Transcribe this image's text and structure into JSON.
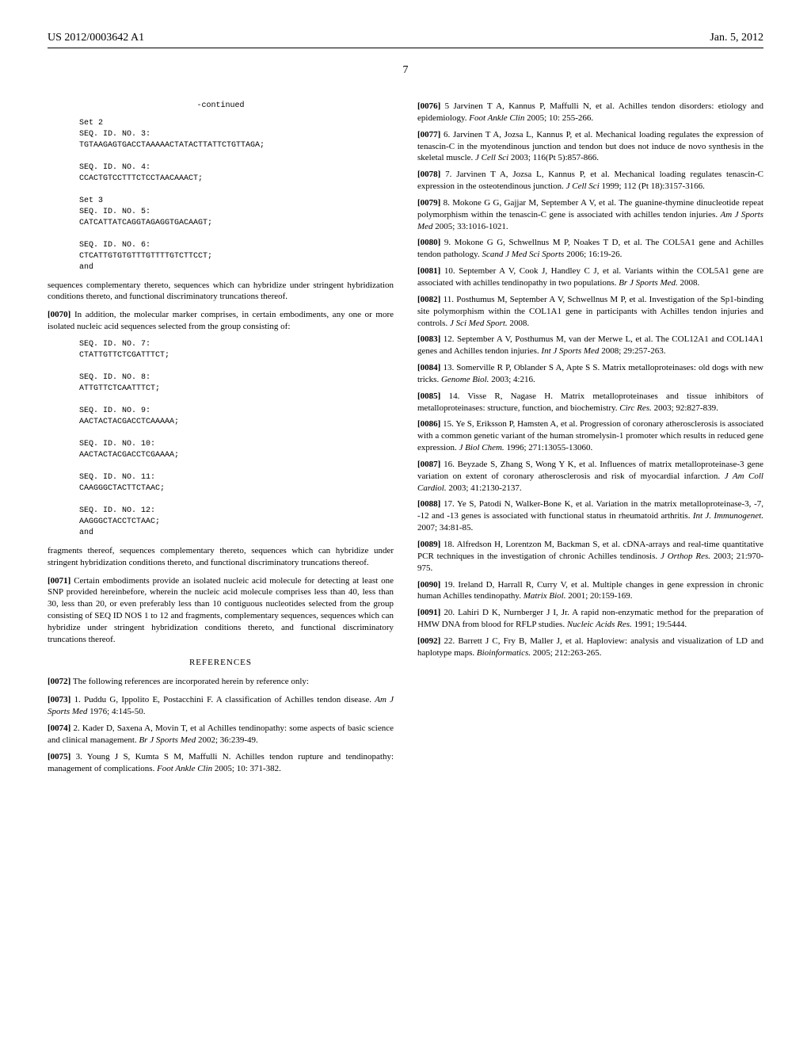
{
  "header": {
    "pub_number": "US 2012/0003642 A1",
    "date": "Jan. 5, 2012",
    "page": "7"
  },
  "col1": {
    "continued_label": "-continued",
    "seq_set2_label": "Set 2",
    "seq3_label": "SEQ. ID. NO. 3:",
    "seq3": "TGTAAGAGTGACCTAAAAACTATACTTATTCTGTTAGA;",
    "seq4_label": "SEQ. ID. NO. 4:",
    "seq4": "CCACTGTCCTTTCTCCTAACAAACT;",
    "seq_set3_label": "Set 3",
    "seq5_label": "SEQ. ID. NO. 5:",
    "seq5": "CATCATTATCAGGTAGAGGTGACAAGT;",
    "seq6_label": "SEQ. ID. NO. 6:",
    "seq6": "CTCATTGTGTGTTTGTTTTGTCTTCCT;",
    "seq6_and": "and",
    "para_after_seq": "sequences complementary thereto, sequences which can hybridize under stringent hybridization conditions thereto, and functional discriminatory truncations thereof.",
    "p0070_num": "[0070]",
    "p0070": "In addition, the molecular marker comprises, in certain embodiments, any one or more isolated nucleic acid sequences selected from the group consisting of:",
    "seq7_label": "SEQ. ID. NO. 7:",
    "seq7": "CTATTGTTCTCGATTTCT;",
    "seq8_label": "SEQ. ID. NO. 8:",
    "seq8": "ATTGTTCTCAATTTCT;",
    "seq9_label": "SEQ. ID. NO. 9:",
    "seq9": "AACTACTACGACCTCAAAAA;",
    "seq10_label": "SEQ. ID. NO. 10:",
    "seq10": "AACTACTACGACCTCGAAAA;",
    "seq11_label": "SEQ. ID. NO. 11:",
    "seq11": "CAAGGGCTACTTCTAAC;",
    "seq12_label": "SEQ. ID. NO. 12:",
    "seq12": "AAGGGCTACCTCTAAC;",
    "seq12_and": "and",
    "para_after_seq2": "fragments thereof, sequences complementary thereto, sequences which can hybridize under stringent hybridization conditions thereto, and functional discriminatory truncations thereof.",
    "p0071_num": "[0071]",
    "p0071": "Certain embodiments provide an isolated nucleic acid molecule for detecting at least one SNP provided hereinbefore, wherein the nucleic acid molecule comprises less than 40, less than 30, less than 20, or even preferably less than 10 contiguous nucleotides selected from the group consisting of SEQ ID NOS 1 to 12 and fragments, complementary sequences, sequences which can hybridize under stringent hybridization conditions thereto, and functional discriminatory truncations thereof.",
    "references_heading": "REFERENCES",
    "p0072_num": "[0072]",
    "p0072": "The following references are incorporated herein by reference only:",
    "p0073_num": "[0073]",
    "p0073_a": "1. Puddu G, Ippolito E, Postacchini F. A classification of Achilles tendon disease. ",
    "p0073_i": "Am J Sports Med",
    "p0073_b": " 1976; 4:145-50.",
    "p0074_num": "[0074]",
    "p0074_a": "2. Kader D, Saxena A, Movin T, et al Achilles tendinopathy: some aspects of basic science and clinical management. ",
    "p0074_i": "Br J Sports Med",
    "p0074_b": " 2002; 36:239-49.",
    "p0075_num": "[0075]",
    "p0075_a": "3. Young J S, Kumta S M, Maffulli N. Achilles tendon rupture and tendinopathy: management of complications. ",
    "p0075_i": "Foot Ankle Clin",
    "p0075_b": " 2005; 10: 371-382."
  },
  "col2": {
    "p0076_num": "[0076]",
    "p0076_a": "5 Jarvinen T A, Kannus P, Maffulli N, et al. Achilles tendon disorders: etiology and epidemiology. ",
    "p0076_i": "Foot Ankle Clin",
    "p0076_b": " 2005; 10: 255-266.",
    "p0077_num": "[0077]",
    "p0077_a": "6. Jarvinen T A, Jozsa L, Kannus P, et al. Mechanical loading regulates the expression of tenascin-C in the myotendinous junction and tendon but does not induce de novo synthesis in the skeletal muscle. ",
    "p0077_i": "J Cell Sci",
    "p0077_b": " 2003; 116(Pt 5):857-866.",
    "p0078_num": "[0078]",
    "p0078_a": "7. Jarvinen T A, Jozsa L, Kannus P, et al. Mechanical loading regulates tenascin-C expression in the osteotendinous junction. ",
    "p0078_i": "J Cell Sci",
    "p0078_b": " 1999; 112 (Pt 18):3157-3166.",
    "p0079_num": "[0079]",
    "p0079_a": "8. Mokone G G, Gajjar M, September A V, et al. The guanine-thymine dinucleotide repeat polymorphism within the tenascin-C gene is associated with achilles tendon injuries. ",
    "p0079_i": "Am J Sports Med",
    "p0079_b": " 2005; 33:1016-1021.",
    "p0080_num": "[0080]",
    "p0080_a": "9. Mokone G G, Schwellnus M P, Noakes T D, et al. The COL5A1 gene and Achilles tendon pathology. ",
    "p0080_i": "Scand J Med Sci Sports",
    "p0080_b": " 2006; 16:19-26.",
    "p0081_num": "[0081]",
    "p0081_a": "10. September A V, Cook J, Handley C J, et al. Variants within the COL5A1 gene are associated with achilles tendinopathy in two populations. ",
    "p0081_i": "Br J Sports Med.",
    "p0081_b": " 2008.",
    "p0082_num": "[0082]",
    "p0082_a": "11. Posthumus M, September A V, Schwellnus M P, et al. Investigation of the Sp1-binding site polymorphism within the COL1A1 gene in participants with Achilles tendon injuries and controls. ",
    "p0082_i": "J Sci Med Sport.",
    "p0082_b": " 2008.",
    "p0083_num": "[0083]",
    "p0083_a": "12. September A V, Posthumus M, van der Merwe L, et al. The COL12A1 and COL14A1 genes and Achilles tendon injuries. ",
    "p0083_i": "Int J Sports Med",
    "p0083_b": " 2008; 29:257-263.",
    "p0084_num": "[0084]",
    "p0084_a": "13. Somerville R P, Oblander S A, Apte S S. Matrix metalloproteinases: old dogs with new tricks. ",
    "p0084_i": "Genome Biol.",
    "p0084_b": " 2003; 4:216.",
    "p0085_num": "[0085]",
    "p0085_a": "14. Visse R, Nagase H. Matrix metalloproteinases and tissue inhibitors of metalloproteinases: structure, function, and biochemistry. ",
    "p0085_i": "Circ Res.",
    "p0085_b": " 2003; 92:827-839.",
    "p0086_num": "[0086]",
    "p0086_a": "15. Ye S, Eriksson P, Hamsten A, et al. Progression of coronary atherosclerosis is associated with a common genetic variant of the human stromelysin-1 promoter which results in reduced gene expression. ",
    "p0086_i": "J Biol Chem.",
    "p0086_b": " 1996; 271:13055-13060.",
    "p0087_num": "[0087]",
    "p0087_a": "16. Beyzade S, Zhang S, Wong Y K, et al. Influences of matrix metalloproteinase-3 gene variation on extent of coronary atherosclerosis and risk of myocardial infarction. ",
    "p0087_i": "J Am Coll Cardiol.",
    "p0087_b": " 2003; 41:2130-2137.",
    "p0088_num": "[0088]",
    "p0088_a": "17. Ye S, Patodi N, Walker-Bone K, et al. Variation in the matrix metalloproteinase-3, -7, -12 and -13 genes is associated with functional status in rheumatoid arthritis. ",
    "p0088_i": "Int J. Immunogenet.",
    "p0088_b": " 2007; 34:81-85.",
    "p0089_num": "[0089]",
    "p0089_a": "18. Alfredson H, Lorentzon M, Backman S, et al. cDNA-arrays and real-time quantitative PCR techniques in the investigation of chronic Achilles tendinosis. ",
    "p0089_i": "J Orthop Res.",
    "p0089_b": " 2003; 21:970-975.",
    "p0090_num": "[0090]",
    "p0090_a": "19. Ireland D, Harrall R, Curry V, et al. Multiple changes in gene expression in chronic human Achilles tendinopathy. ",
    "p0090_i": "Matrix Biol.",
    "p0090_b": " 2001; 20:159-169.",
    "p0091_num": "[0091]",
    "p0091_a": "20. Lahiri D K, Nurnberger J I, Jr. A rapid non-enzymatic method for the preparation of HMW DNA from blood for RFLP studies. ",
    "p0091_i": "Nucleic Acids Res.",
    "p0091_b": " 1991; 19:5444.",
    "p0092_num": "[0092]",
    "p0092_a": "22. Barrett J C, Fry B, Maller J, et al. Haploview: analysis and visualization of LD and haplotype maps. ",
    "p0092_i": "Bioinformatics.",
    "p0092_b": " 2005; 212:263-265."
  }
}
